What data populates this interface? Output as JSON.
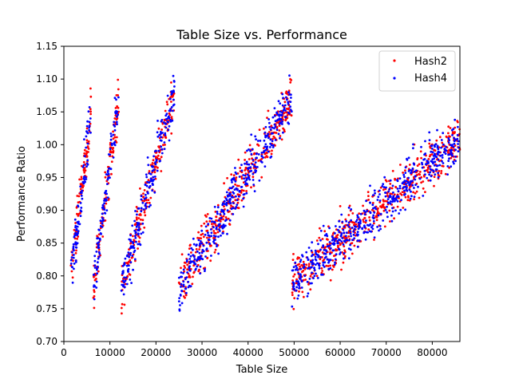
{
  "chart_data": {
    "type": "scatter",
    "title": "Table Size vs. Performance",
    "xlabel": "Table Size",
    "ylabel": "Performance Ratio",
    "xlim": [
      0,
      86000
    ],
    "ylim": [
      0.7,
      1.15
    ],
    "xticks": [
      0,
      10000,
      20000,
      30000,
      40000,
      50000,
      60000,
      70000,
      80000
    ],
    "yticks": [
      "0.70",
      "0.75",
      "0.80",
      "0.85",
      "0.90",
      "0.95",
      "1.00",
      "1.05",
      "1.10",
      "1.15"
    ],
    "grid": false,
    "legend_position": "top-right",
    "series": [
      {
        "name": "Hash2",
        "color": "#ff0000",
        "segments": [
          {
            "x_start": 1500,
            "x_end": 5900,
            "y_start": 0.8,
            "y_end": 1.05,
            "points": 90
          },
          {
            "x_start": 6400,
            "x_end": 11900,
            "y_start": 0.78,
            "y_end": 1.07,
            "points": 110
          },
          {
            "x_start": 12500,
            "x_end": 24000,
            "y_start": 0.78,
            "y_end": 1.08,
            "points": 200
          },
          {
            "x_start": 25000,
            "x_end": 49500,
            "y_start": 0.78,
            "y_end": 1.07,
            "points": 380
          },
          {
            "x_start": 49500,
            "x_end": 86000,
            "y_start": 0.79,
            "y_end": 1.01,
            "points": 520
          }
        ]
      },
      {
        "name": "Hash4",
        "color": "#0000ff",
        "segments": [
          {
            "x_start": 1500,
            "x_end": 5900,
            "y_start": 0.8,
            "y_end": 1.05,
            "points": 90
          },
          {
            "x_start": 6400,
            "x_end": 11900,
            "y_start": 0.78,
            "y_end": 1.07,
            "points": 110
          },
          {
            "x_start": 12500,
            "x_end": 24000,
            "y_start": 0.78,
            "y_end": 1.08,
            "points": 200
          },
          {
            "x_start": 25000,
            "x_end": 49500,
            "y_start": 0.78,
            "y_end": 1.07,
            "points": 380
          },
          {
            "x_start": 49500,
            "x_end": 86000,
            "y_start": 0.79,
            "y_end": 1.01,
            "points": 520
          }
        ]
      }
    ]
  }
}
